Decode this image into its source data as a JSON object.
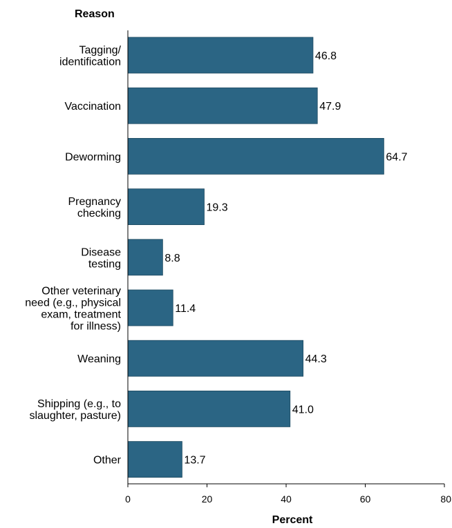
{
  "chart_data": {
    "type": "bar",
    "orientation": "horizontal",
    "categories": [
      [
        "Tagging/",
        "identification"
      ],
      [
        "Vaccination"
      ],
      [
        "Deworming"
      ],
      [
        "Pregnancy",
        "checking"
      ],
      [
        "Disease",
        "testing"
      ],
      [
        "Other veterinary",
        "need (e.g., physical",
        "exam, treatment",
        "for illness)"
      ],
      [
        "Weaning"
      ],
      [
        "Shipping (e.g., to",
        "slaughter, pasture)"
      ],
      [
        "Other"
      ]
    ],
    "values": [
      46.8,
      47.9,
      64.7,
      19.3,
      8.8,
      11.4,
      44.3,
      41.0,
      13.7
    ],
    "value_labels": [
      "46.8",
      "47.9",
      "64.7",
      "19.3",
      "8.8",
      "11.4",
      "44.3",
      "41.0",
      "13.7"
    ],
    "xlabel": "Percent",
    "ylabel": "Reason",
    "xlim": [
      0,
      80
    ],
    "xticks": [
      "0",
      "20",
      "40",
      "60",
      "80"
    ],
    "grid": false,
    "bar_color": "#2b6584"
  }
}
